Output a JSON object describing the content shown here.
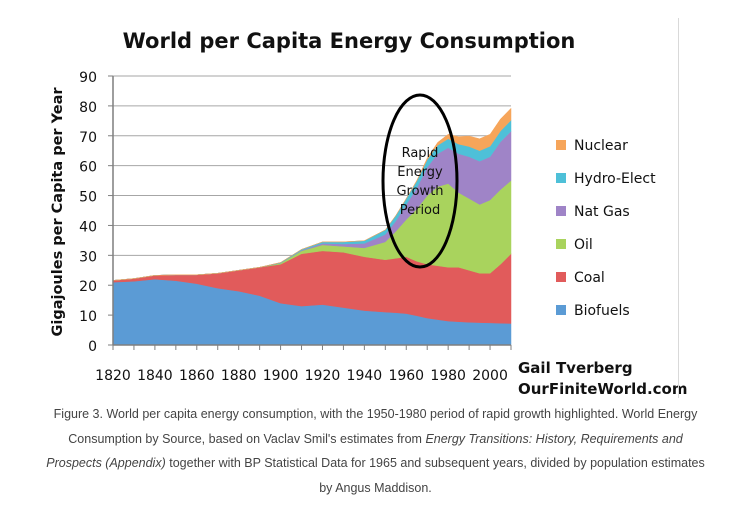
{
  "chart_data": {
    "type": "area",
    "stacked": true,
    "title": "World per Capita Energy Consumption",
    "xlabel": "",
    "ylabel": "Gigajoules per Capita per Year",
    "xlim": [
      1820,
      2010
    ],
    "ylim": [
      0,
      90
    ],
    "y_ticks": [
      0,
      10,
      20,
      30,
      40,
      50,
      60,
      70,
      80,
      90
    ],
    "x_ticks": [
      1820,
      1840,
      1860,
      1880,
      1900,
      1920,
      1940,
      1960,
      1980,
      2000
    ],
    "grid": "horizontal",
    "legend_position": "right",
    "x": [
      1820,
      1830,
      1840,
      1850,
      1860,
      1870,
      1880,
      1890,
      1900,
      1910,
      1920,
      1930,
      1940,
      1950,
      1955,
      1960,
      1965,
      1970,
      1975,
      1980,
      1985,
      1990,
      1995,
      2000,
      2005,
      2010
    ],
    "series": [
      {
        "name": "Biofuels",
        "color": "#5b9bd5",
        "values": [
          21.0,
          21.3,
          22.0,
          21.5,
          20.5,
          19.0,
          18.0,
          16.5,
          14.0,
          13.0,
          13.5,
          12.5,
          11.5,
          11.0,
          10.8,
          10.5,
          9.8,
          9.0,
          8.5,
          8.0,
          7.8,
          7.6,
          7.5,
          7.4,
          7.3,
          7.2
        ]
      },
      {
        "name": "Coal",
        "color": "#e15b5b",
        "values": [
          0.6,
          0.9,
          1.3,
          2.0,
          3.0,
          5.0,
          7.0,
          9.5,
          13.0,
          17.5,
          18.0,
          18.5,
          18.0,
          17.5,
          18.2,
          19.0,
          18.2,
          18.0,
          18.0,
          18.0,
          18.2,
          17.4,
          16.5,
          16.6,
          19.7,
          23.3
        ]
      },
      {
        "name": "Oil",
        "color": "#a9d35d",
        "values": [
          0.0,
          0.0,
          0.0,
          0.0,
          0.0,
          0.0,
          0.0,
          0.0,
          0.4,
          1.0,
          2.0,
          2.0,
          3.0,
          6.0,
          9.0,
          12.5,
          17.5,
          23.0,
          26.5,
          28.0,
          25.0,
          24.0,
          23.0,
          24.5,
          25.0,
          24.5
        ]
      },
      {
        "name": "Nat Gas",
        "color": "#9f84c7",
        "values": [
          0.0,
          0.0,
          0.0,
          0.0,
          0.0,
          0.0,
          0.0,
          0.0,
          0.0,
          0.2,
          0.5,
          0.8,
          1.5,
          2.5,
          3.5,
          5.0,
          7.0,
          9.5,
          11.0,
          12.0,
          13.0,
          14.0,
          14.5,
          14.5,
          16.0,
          16.5
        ]
      },
      {
        "name": "Hydro-Elect",
        "color": "#4ec0d8",
        "values": [
          0.0,
          0.0,
          0.0,
          0.0,
          0.0,
          0.0,
          0.0,
          0.0,
          0.2,
          0.3,
          0.5,
          0.7,
          0.9,
          1.5,
          1.8,
          2.0,
          2.3,
          2.5,
          2.8,
          3.0,
          3.2,
          3.4,
          3.5,
          3.5,
          3.6,
          3.7
        ]
      },
      {
        "name": "Nuclear",
        "color": "#f6a55a",
        "values": [
          0.0,
          0.0,
          0.0,
          0.0,
          0.0,
          0.0,
          0.0,
          0.0,
          0.0,
          0.0,
          0.0,
          0.0,
          0.0,
          0.0,
          0.0,
          0.0,
          0.2,
          0.5,
          1.0,
          1.5,
          2.5,
          3.5,
          4.0,
          4.0,
          4.0,
          4.0
        ]
      }
    ],
    "annotation": {
      "lines": [
        "Rapid",
        "Energy",
        "Growth",
        "Period"
      ],
      "range": [
        1950,
        1980
      ]
    },
    "credit": {
      "line1": "Gail Tverberg",
      "line2": "OurFiniteWorld.com"
    }
  },
  "caption": {
    "part1": "Figure 3. World per capita energy consumption, with the 1950-1980 period of rapid growth highlighted. World Energy Consumption by Source, based on Vaclav Smil's estimates from ",
    "italic1": "Energy Transitions: History, Requirements and Prospects (Appendix)",
    "part2": " together with BP Statistical Data for 1965 and subsequent years, divided by population estimates by Angus Maddison."
  }
}
